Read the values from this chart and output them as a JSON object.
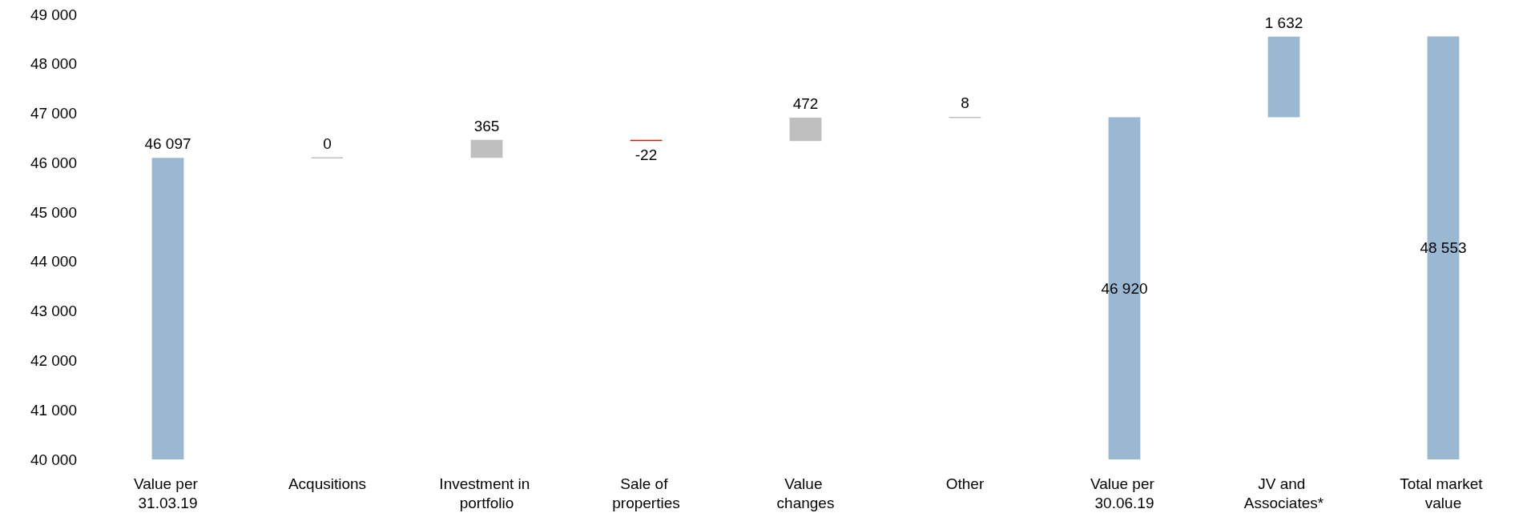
{
  "chart_data": {
    "type": "bar",
    "categories": [
      "Value per 31.03.19",
      "Acqusitions",
      "Investment in portfolio",
      "Sale of properties",
      "Value changes",
      "Other",
      "Value per 30.06.19",
      "JV and Associates*",
      "Total market value"
    ],
    "values": [
      46097,
      0,
      365,
      -22,
      472,
      8,
      46920,
      1632,
      48553
    ],
    "base": [
      null,
      46097,
      46097,
      46462,
      46440,
      46912,
      null,
      46920,
      null
    ],
    "colors": [
      "#9bb8d3",
      "#bfbfbf",
      "#bfbfbf",
      "#ff0000",
      "#bfbfbf",
      "#bfbfbf",
      "#9bb8d3",
      "#9bb8d3",
      "#9bb8d3"
    ],
    "value_labels": [
      "46 097",
      "0",
      "365",
      "-22",
      "472",
      "8",
      "46 920",
      "1 632",
      "48 553"
    ],
    "ylim": [
      40000,
      49000
    ],
    "yticks": [
      {
        "value": 40000,
        "label": "40 000"
      },
      {
        "value": 41000,
        "label": "41 000"
      },
      {
        "value": 42000,
        "label": "42 000"
      },
      {
        "value": 43000,
        "label": "43 000"
      },
      {
        "value": 44000,
        "label": "44 000"
      },
      {
        "value": 45000,
        "label": "45 000"
      },
      {
        "value": 46000,
        "label": "46 000"
      },
      {
        "value": 47000,
        "label": "47 000"
      },
      {
        "value": 48000,
        "label": "48 000"
      },
      {
        "value": 49000,
        "label": "49 000"
      }
    ],
    "grid": false
  }
}
